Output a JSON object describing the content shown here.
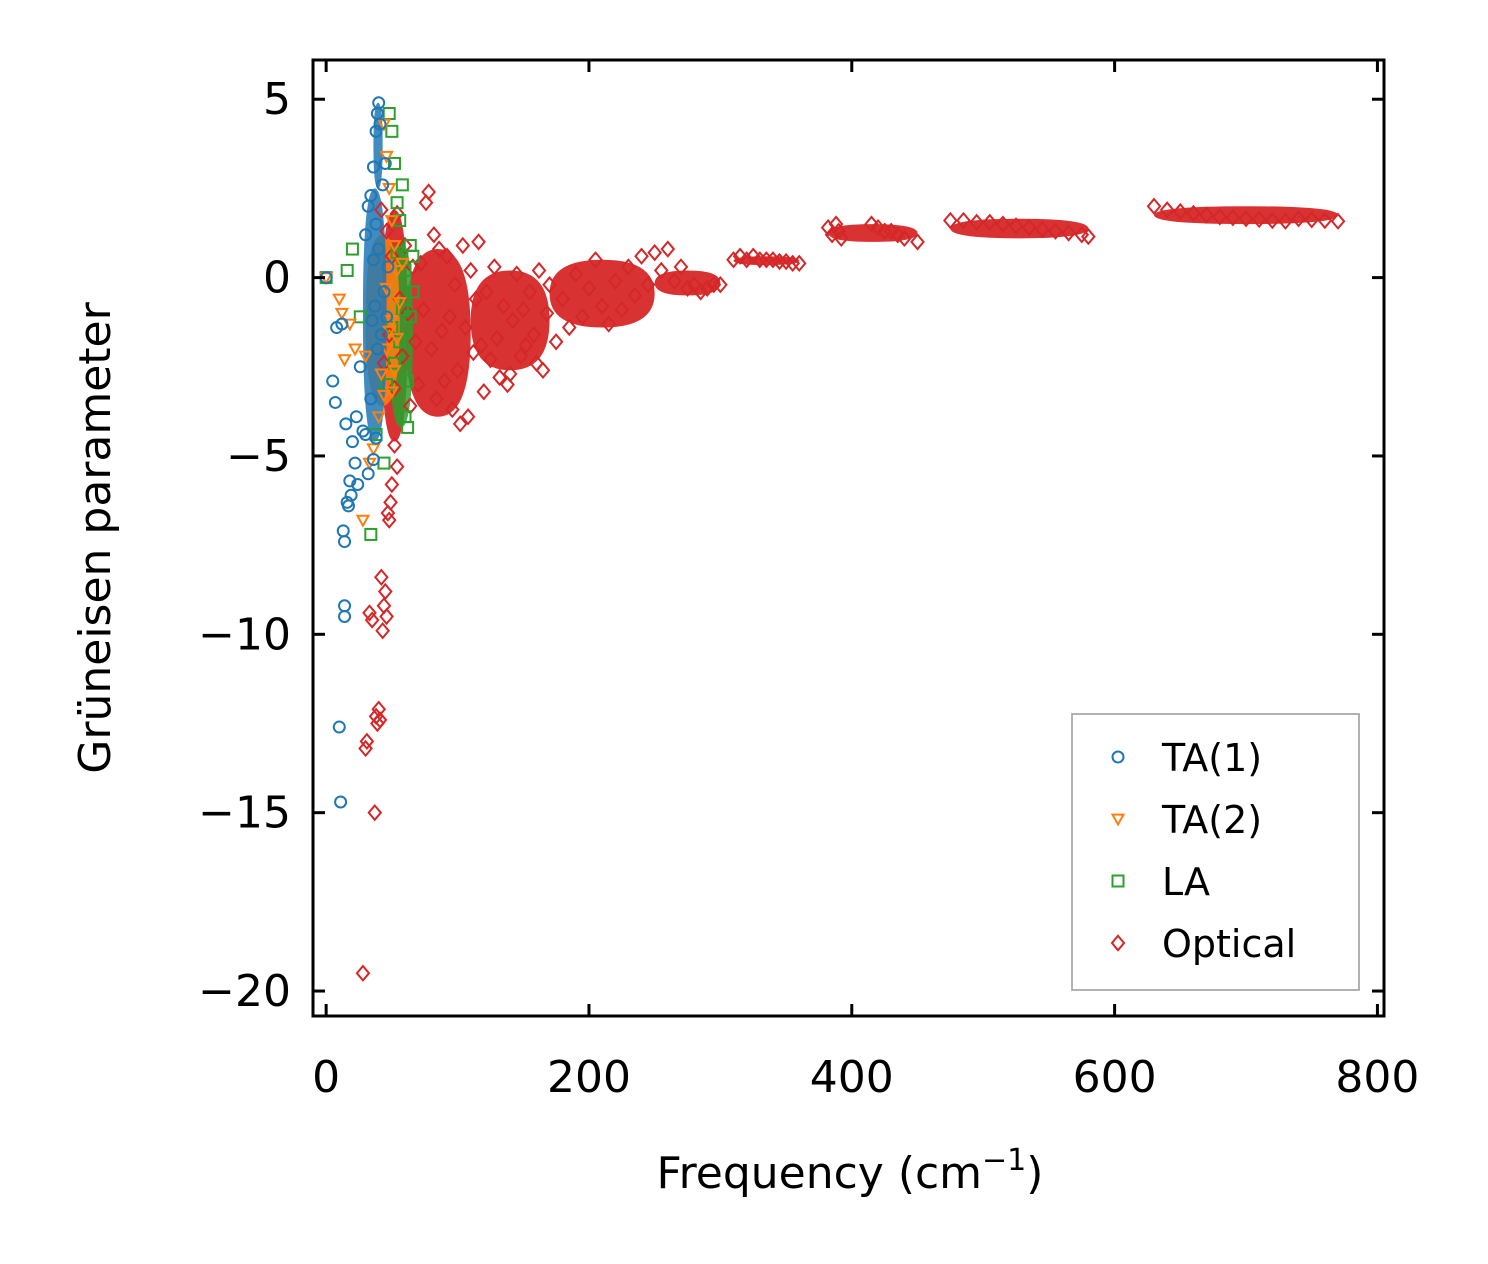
{
  "chart_data": {
    "type": "scatter",
    "title": "",
    "xlabel": "Frequency (cm",
    "xlabel_sup": "−1",
    "xlabel_end": ")",
    "ylabel": "Grüneisen parameter",
    "xlim": [
      -10,
      805
    ],
    "ylim": [
      -20.7,
      6.1
    ],
    "x_ticks": [
      0,
      200,
      400,
      600,
      800
    ],
    "x_tick_labels": [
      "0",
      "200",
      "400",
      "600",
      "800"
    ],
    "y_ticks": [
      5,
      0,
      -5,
      -10,
      -15,
      -20
    ],
    "y_tick_labels": [
      "5",
      "0",
      "−5",
      "−10",
      "−15",
      "−20"
    ],
    "grid": false,
    "legend_position": "bottom-right",
    "series": [
      {
        "name": "TA(1)",
        "marker": "circle",
        "color": "#1f77b4",
        "points": [
          [
            0,
            0
          ],
          [
            5,
            -2.9
          ],
          [
            7,
            -3.5
          ],
          [
            8,
            -1.4
          ],
          [
            10,
            -12.6
          ],
          [
            11,
            -14.7
          ],
          [
            12,
            -1.3
          ],
          [
            13,
            -7.1
          ],
          [
            14,
            -7.4
          ],
          [
            14,
            -9.2
          ],
          [
            14,
            -9.5
          ],
          [
            15,
            -4.1
          ],
          [
            16,
            -6.3
          ],
          [
            17,
            -6.4
          ],
          [
            18,
            -5.7
          ],
          [
            19,
            -6.1
          ],
          [
            20,
            -4.6
          ],
          [
            22,
            -5.2
          ],
          [
            23,
            -3.9
          ],
          [
            24,
            -5.8
          ],
          [
            26,
            -2.5
          ],
          [
            28,
            -4.3
          ],
          [
            30,
            -4.4
          ],
          [
            32,
            -5.5
          ],
          [
            34,
            -3.4
          ],
          [
            36,
            -5.1
          ],
          [
            38,
            -4.5
          ],
          [
            30,
            1.2
          ],
          [
            32,
            2.0
          ],
          [
            34,
            2.3
          ],
          [
            36,
            3.1
          ],
          [
            38,
            4.1
          ],
          [
            39,
            4.6
          ],
          [
            40,
            4.9
          ],
          [
            41,
            4.3
          ],
          [
            35,
            -1.2
          ],
          [
            36,
            0.5
          ],
          [
            37,
            -0.8
          ],
          [
            38,
            1.5
          ],
          [
            39,
            -2.0
          ],
          [
            40,
            0.8
          ],
          [
            42,
            -1.6
          ],
          [
            43,
            2.6
          ],
          [
            44,
            -0.4
          ],
          [
            45,
            3.2
          ],
          [
            46,
            -1.1
          ],
          [
            47,
            0.3
          ]
        ]
      },
      {
        "name": "TA(2)",
        "marker": "triangle-down",
        "color": "#ff7f0e",
        "points": [
          [
            0,
            0
          ],
          [
            10,
            -0.6
          ],
          [
            12,
            -1.0
          ],
          [
            14,
            -2.3
          ],
          [
            18,
            -1.3
          ],
          [
            22,
            -2.0
          ],
          [
            28,
            -6.8
          ],
          [
            30,
            -2.2
          ],
          [
            33,
            -5.2
          ],
          [
            36,
            -4.8
          ],
          [
            40,
            -3.9
          ],
          [
            42,
            -2.7
          ],
          [
            44,
            -3.3
          ],
          [
            46,
            -2.0
          ],
          [
            48,
            -1.5
          ],
          [
            50,
            -3.2
          ],
          [
            52,
            -2.6
          ],
          [
            54,
            -1.7
          ],
          [
            44,
            4.3
          ],
          [
            46,
            3.4
          ],
          [
            48,
            2.5
          ],
          [
            50,
            1.6
          ],
          [
            52,
            0.9
          ],
          [
            54,
            0.2
          ],
          [
            56,
            -0.7
          ],
          [
            58,
            0.4
          ],
          [
            46,
            -0.3
          ],
          [
            50,
            -1.2
          ]
        ]
      },
      {
        "name": "LA",
        "marker": "square",
        "color": "#2ca02c",
        "points": [
          [
            0,
            0
          ],
          [
            16,
            0.2
          ],
          [
            20,
            0.8
          ],
          [
            26,
            -1.1
          ],
          [
            34,
            -7.2
          ],
          [
            38,
            -4.4
          ],
          [
            44,
            -5.2
          ],
          [
            46,
            -3.0
          ],
          [
            48,
            4.6
          ],
          [
            50,
            4.1
          ],
          [
            52,
            3.2
          ],
          [
            54,
            2.1
          ],
          [
            56,
            1.6
          ],
          [
            58,
            -0.9
          ],
          [
            60,
            -3.9
          ],
          [
            62,
            -4.2
          ],
          [
            64,
            0.9
          ],
          [
            66,
            -0.4
          ],
          [
            50,
            -1.4
          ],
          [
            52,
            -2.4
          ],
          [
            54,
            0.7
          ],
          [
            56,
            -1.8
          ],
          [
            58,
            2.6
          ],
          [
            60,
            0.2
          ],
          [
            62,
            -2.9
          ],
          [
            64,
            -1.1
          ],
          [
            66,
            0.6
          ]
        ]
      },
      {
        "name": "Optical",
        "marker": "diamond",
        "color": "#d62728",
        "points": [
          [
            28,
            -19.5
          ],
          [
            30,
            -13.2
          ],
          [
            31,
            -13.0
          ],
          [
            33,
            -9.4
          ],
          [
            35,
            -9.6
          ],
          [
            37,
            -15.0
          ],
          [
            38,
            -12.3
          ],
          [
            39,
            -12.5
          ],
          [
            40,
            -12.1
          ],
          [
            41,
            -12.4
          ],
          [
            42,
            -8.4
          ],
          [
            43,
            -9.9
          ],
          [
            44,
            -9.2
          ],
          [
            45,
            -8.8
          ],
          [
            46,
            -9.5
          ],
          [
            47,
            -6.6
          ],
          [
            48,
            -6.8
          ],
          [
            49,
            -6.3
          ],
          [
            50,
            -5.8
          ],
          [
            52,
            -4.7
          ],
          [
            54,
            -5.3
          ],
          [
            42,
            1.9
          ],
          [
            44,
            -2.4
          ],
          [
            46,
            1.3
          ],
          [
            48,
            -1.6
          ],
          [
            50,
            0.6
          ],
          [
            52,
            -3.1
          ],
          [
            54,
            1.8
          ],
          [
            56,
            -0.6
          ],
          [
            58,
            -2.2
          ],
          [
            60,
            0.9
          ],
          [
            62,
            -1.0
          ],
          [
            64,
            -3.6
          ],
          [
            66,
            0.3
          ],
          [
            68,
            -1.8
          ],
          [
            70,
            -3.0
          ],
          [
            72,
            0.4
          ],
          [
            74,
            -0.9
          ],
          [
            76,
            2.1
          ],
          [
            78,
            2.4
          ],
          [
            80,
            -2.0
          ],
          [
            82,
            1.2
          ],
          [
            84,
            -3.4
          ],
          [
            86,
            0.8
          ],
          [
            88,
            -1.5
          ],
          [
            90,
            -2.9
          ],
          [
            92,
            0.6
          ],
          [
            94,
            -1.1
          ],
          [
            96,
            -3.7
          ],
          [
            98,
            -0.2
          ],
          [
            100,
            -2.6
          ],
          [
            102,
            -4.1
          ],
          [
            104,
            0.9
          ],
          [
            106,
            -1.4
          ],
          [
            108,
            -3.9
          ],
          [
            110,
            0.2
          ],
          [
            112,
            -2.1
          ],
          [
            114,
            -0.6
          ],
          [
            116,
            1.0
          ],
          [
            118,
            -1.9
          ],
          [
            120,
            -3.2
          ],
          [
            122,
            -0.4
          ],
          [
            125,
            -2.3
          ],
          [
            128,
            0.3
          ],
          [
            130,
            -1.7
          ],
          [
            132,
            -2.8
          ],
          [
            135,
            -0.8
          ],
          [
            138,
            -3.0
          ],
          [
            140,
            -2.7
          ],
          [
            142,
            -1.2
          ],
          [
            145,
            0.1
          ],
          [
            148,
            -2.2
          ],
          [
            150,
            -0.9
          ],
          [
            152,
            -1.9
          ],
          [
            155,
            -0.4
          ],
          [
            158,
            -1.6
          ],
          [
            160,
            -2.4
          ],
          [
            162,
            0.2
          ],
          [
            165,
            -2.6
          ],
          [
            168,
            -1.0
          ],
          [
            170,
            -0.2
          ],
          [
            175,
            -1.8
          ],
          [
            180,
            -0.6
          ],
          [
            185,
            -1.4
          ],
          [
            190,
            0.1
          ],
          [
            195,
            -1.1
          ],
          [
            200,
            -0.3
          ],
          [
            205,
            0.5
          ],
          [
            210,
            -0.8
          ],
          [
            215,
            -1.3
          ],
          [
            220,
            -0.1
          ],
          [
            225,
            -0.9
          ],
          [
            230,
            0.3
          ],
          [
            235,
            -0.5
          ],
          [
            240,
            0.6
          ],
          [
            245,
            -0.2
          ],
          [
            250,
            0.7
          ],
          [
            255,
            0.2
          ],
          [
            260,
            0.8
          ],
          [
            265,
            -0.1
          ],
          [
            270,
            0.3
          ],
          [
            275,
            -0.3
          ],
          [
            280,
            -0.2
          ],
          [
            285,
            -0.4
          ],
          [
            290,
            -0.3
          ],
          [
            295,
            -0.2
          ],
          [
            300,
            -0.2
          ],
          [
            310,
            0.5
          ],
          [
            315,
            0.6
          ],
          [
            320,
            0.5
          ],
          [
            325,
            0.6
          ],
          [
            330,
            0.5
          ],
          [
            335,
            0.5
          ],
          [
            340,
            0.5
          ],
          [
            345,
            0.45
          ],
          [
            350,
            0.45
          ],
          [
            355,
            0.4
          ],
          [
            360,
            0.4
          ],
          [
            382,
            1.4
          ],
          [
            385,
            1.2
          ],
          [
            388,
            1.5
          ],
          [
            390,
            1.3
          ],
          [
            392,
            1.1
          ],
          [
            415,
            1.5
          ],
          [
            420,
            1.4
          ],
          [
            425,
            1.3
          ],
          [
            430,
            1.3
          ],
          [
            435,
            1.2
          ],
          [
            440,
            1.1
          ],
          [
            450,
            1.0
          ],
          [
            475,
            1.6
          ],
          [
            485,
            1.6
          ],
          [
            495,
            1.55
          ],
          [
            505,
            1.55
          ],
          [
            515,
            1.5
          ],
          [
            525,
            1.45
          ],
          [
            535,
            1.4
          ],
          [
            545,
            1.35
          ],
          [
            555,
            1.3
          ],
          [
            565,
            1.25
          ],
          [
            575,
            1.2
          ],
          [
            580,
            1.15
          ],
          [
            630,
            2.0
          ],
          [
            640,
            1.9
          ],
          [
            650,
            1.85
          ],
          [
            660,
            1.8
          ],
          [
            670,
            1.75
          ],
          [
            680,
            1.7
          ],
          [
            690,
            1.68
          ],
          [
            700,
            1.65
          ],
          [
            710,
            1.63
          ],
          [
            720,
            1.6
          ],
          [
            730,
            1.58
          ],
          [
            740,
            1.65
          ],
          [
            750,
            1.62
          ],
          [
            760,
            1.6
          ],
          [
            770,
            1.58
          ]
        ]
      }
    ],
    "dense_bands": [
      {
        "series": "Optical",
        "x0": 42,
        "x1": 62,
        "y0": -4.6,
        "y1": 1.9
      },
      {
        "series": "Optical",
        "x0": 60,
        "x1": 110,
        "y0": -3.9,
        "y1": 0.8
      },
      {
        "series": "Optical",
        "x0": 110,
        "x1": 170,
        "y0": -2.6,
        "y1": 0.2
      },
      {
        "series": "Optical",
        "x0": 170,
        "x1": 250,
        "y0": -1.4,
        "y1": 0.5
      },
      {
        "series": "Optical",
        "x0": 250,
        "x1": 300,
        "y0": -0.5,
        "y1": 0.2
      },
      {
        "series": "Optical",
        "x0": 310,
        "x1": 360,
        "y0": 0.35,
        "y1": 0.6
      },
      {
        "series": "Optical",
        "x0": 382,
        "x1": 450,
        "y0": 1.0,
        "y1": 1.5
      },
      {
        "series": "Optical",
        "x0": 475,
        "x1": 580,
        "y0": 1.1,
        "y1": 1.65
      },
      {
        "series": "Optical",
        "x0": 630,
        "x1": 770,
        "y0": 1.5,
        "y1": 2.0
      },
      {
        "series": "TA(2)",
        "x0": 30,
        "x1": 56,
        "y0": -3.6,
        "y1": 1.2
      },
      {
        "series": "LA",
        "x0": 48,
        "x1": 66,
        "y0": -4.2,
        "y1": 1.0
      },
      {
        "series": "TA(1)",
        "x0": 28,
        "x1": 46,
        "y0": -4.6,
        "y1": 2.5
      },
      {
        "series": "TA(1)",
        "x0": 36,
        "x1": 43,
        "y0": 2.5,
        "y1": 4.9
      }
    ]
  }
}
